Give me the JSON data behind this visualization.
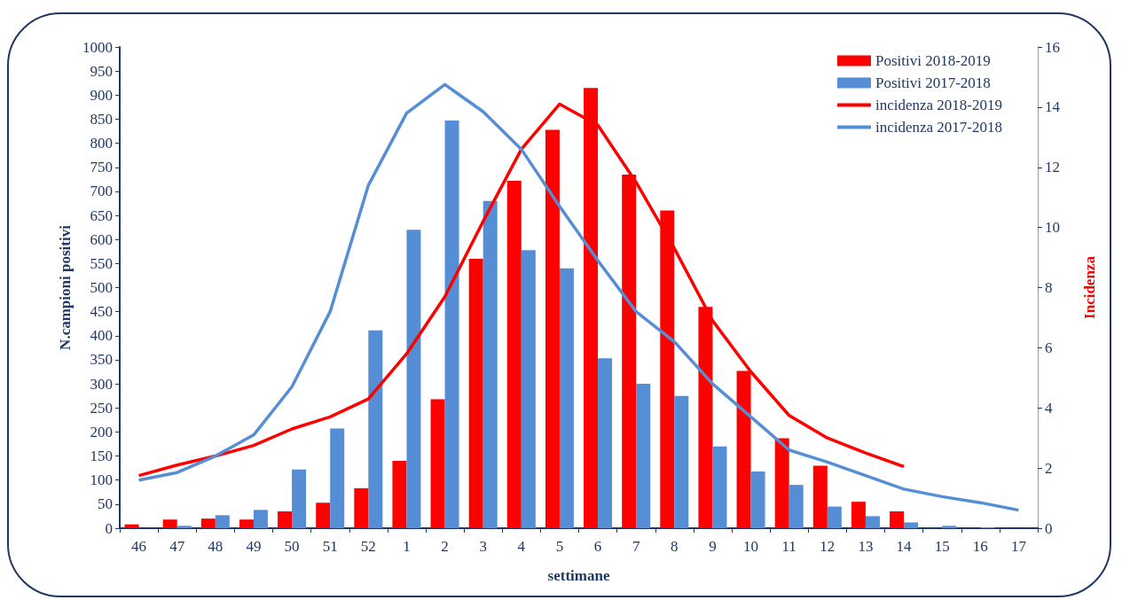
{
  "chart_data": {
    "type": "bar",
    "xlabel": "settimane",
    "ylabel": "N.campioni positivi",
    "y2label": "Incidenza",
    "categories": [
      "46",
      "47",
      "48",
      "49",
      "50",
      "51",
      "52",
      "1",
      "2",
      "3",
      "4",
      "5",
      "6",
      "7",
      "8",
      "9",
      "10",
      "11",
      "12",
      "13",
      "14",
      "15",
      "16",
      "17"
    ],
    "series": [
      {
        "name": "Positivi 2018-2019",
        "color": "#ff0000",
        "values": [
          8,
          18,
          20,
          18,
          35,
          53,
          83,
          140,
          268,
          560,
          722,
          828,
          915,
          735,
          660,
          460,
          327,
          187,
          130,
          55,
          35,
          null,
          null,
          null
        ]
      },
      {
        "name": "Positivi 2017-2018",
        "color": "#558ed5",
        "values": [
          null,
          5,
          27,
          38,
          122,
          207,
          411,
          620,
          847,
          680,
          578,
          540,
          353,
          300,
          275,
          170,
          118,
          90,
          45,
          25,
          12,
          5,
          2,
          null
        ]
      },
      {
        "name": "incidenza 2018-2019",
        "type": "line",
        "axis": "y2",
        "color": "#ff0000",
        "values": [
          1.75,
          2.1,
          2.4,
          2.75,
          3.3,
          3.7,
          4.3,
          5.8,
          7.7,
          10.2,
          12.6,
          14.1,
          13.4,
          11.5,
          9.3,
          6.9,
          5.2,
          3.75,
          3.0,
          2.5,
          2.05,
          null,
          null,
          null
        ]
      },
      {
        "name": "incidenza 2017-2018",
        "type": "line",
        "axis": "y2",
        "color": "#558ed5",
        "values": [
          1.6,
          1.85,
          2.4,
          3.1,
          4.7,
          7.2,
          11.4,
          13.8,
          14.75,
          13.85,
          12.6,
          10.7,
          8.9,
          7.2,
          6.2,
          4.8,
          3.7,
          2.6,
          2.2,
          1.75,
          1.3,
          1.05,
          0.85,
          0.6
        ]
      }
    ],
    "ylim": [
      0,
      1000
    ],
    "yticks": [
      0,
      50,
      100,
      150,
      200,
      250,
      300,
      350,
      400,
      450,
      500,
      550,
      600,
      650,
      700,
      750,
      800,
      850,
      900,
      950,
      1000
    ],
    "y2lim": [
      0,
      16
    ],
    "y2ticks": [
      0,
      2,
      4,
      6,
      8,
      10,
      12,
      14,
      16
    ],
    "grid": false,
    "legend": "top right",
    "marker": "none",
    "line_style": "solid"
  }
}
